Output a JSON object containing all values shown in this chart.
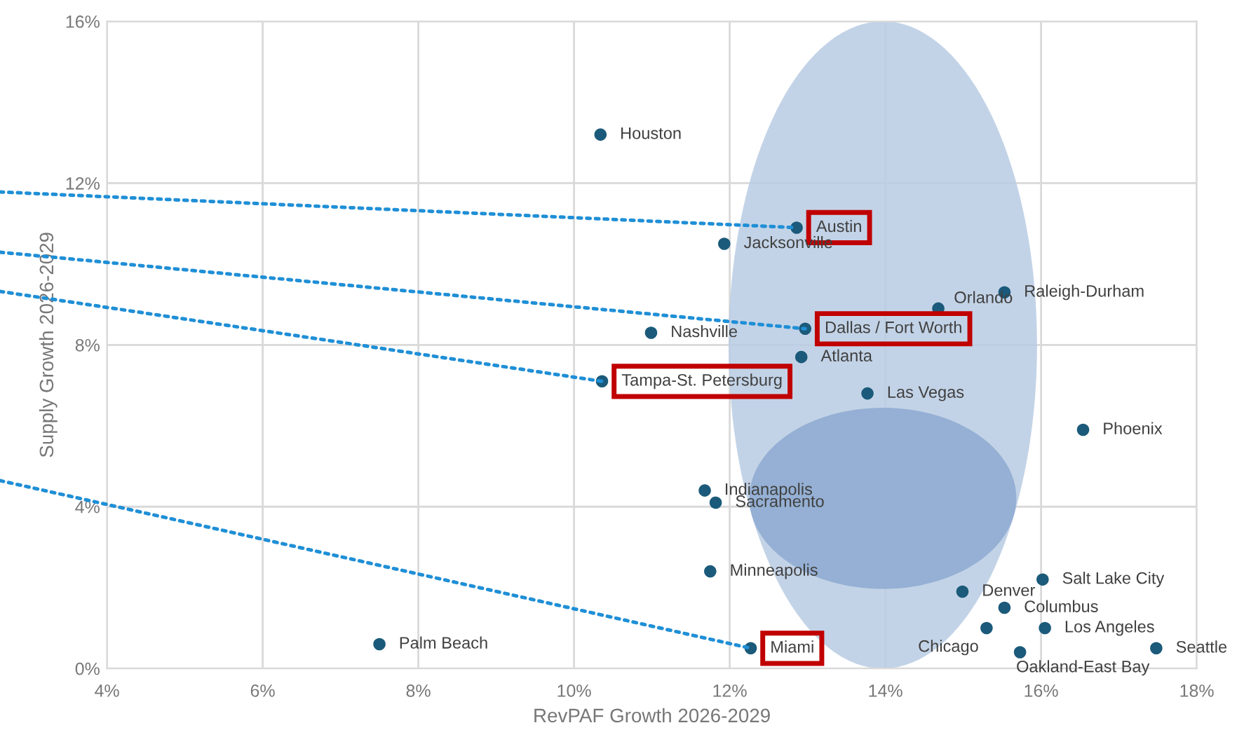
{
  "chart_data": {
    "type": "scatter",
    "xlabel": "RevPAF Growth 2026-2029",
    "ylabel": "Supply Growth 2026-2029",
    "x": [
      10.34,
      12.86,
      11.93,
      15.53,
      14.68,
      10.99,
      12.97,
      12.92,
      10.36,
      13.77,
      16.54,
      11.68,
      11.82,
      11.75,
      16.02,
      14.99,
      15.53,
      16.05,
      15.3,
      7.5,
      12.27,
      15.73,
      17.48
    ],
    "series": [
      {
        "color": "#1b5a7a",
        "values": [
          13.2,
          10.9,
          10.5,
          9.3,
          8.9,
          8.3,
          8.4,
          7.7,
          7.1,
          6.8,
          5.9,
          4.4,
          4.1,
          2.4,
          2.2,
          1.9,
          1.5,
          1.0,
          1.0,
          0.6,
          0.5,
          0.4,
          0.5
        ]
      }
    ],
    "annotations": [
      {
        "text": "Houston",
        "x": 10.34,
        "y": 13.2
      },
      {
        "text": "Austin",
        "x": 12.86,
        "y": 10.9
      },
      {
        "text": "Jacksonville",
        "x": 11.93,
        "y": 10.5
      },
      {
        "text": "Raleigh-Durham",
        "x": 15.53,
        "y": 9.3
      },
      {
        "text": "Orlando",
        "x": 14.68,
        "y": 8.9
      },
      {
        "text": "Nashville",
        "x": 10.99,
        "y": 8.3
      },
      {
        "text": "Dallas / Fort Worth",
        "x": 12.97,
        "y": 8.4
      },
      {
        "text": "Atlanta",
        "x": 12.92,
        "y": 7.7
      },
      {
        "text": "Tampa-St. Petersburg",
        "x": 10.36,
        "y": 7.1
      },
      {
        "text": "Las Vegas",
        "x": 13.77,
        "y": 6.8
      },
      {
        "text": "Phoenix",
        "x": 16.54,
        "y": 5.9
      },
      {
        "text": "Indianapolis",
        "x": 11.68,
        "y": 4.4
      },
      {
        "text": "Sacramento",
        "x": 11.82,
        "y": 4.1
      },
      {
        "text": "Minneapolis",
        "x": 11.75,
        "y": 2.4
      },
      {
        "text": "Salt Lake City",
        "x": 16.02,
        "y": 2.2
      },
      {
        "text": "Denver",
        "x": 14.99,
        "y": 1.9
      },
      {
        "text": "Columbus",
        "x": 15.53,
        "y": 1.5
      },
      {
        "text": "Los Angeles",
        "x": 16.05,
        "y": 1.0
      },
      {
        "text": "Chicago",
        "x": 15.3,
        "y": 1.0
      },
      {
        "text": "Palm Beach",
        "x": 7.5,
        "y": 0.6
      },
      {
        "text": "Miami",
        "x": 12.27,
        "y": 0.5
      },
      {
        "text": "Oakland-East Bay",
        "x": 15.73,
        "y": 0.4
      },
      {
        "text": "Seattle",
        "x": 17.48,
        "y": 0.5
      }
    ],
    "xlim": [
      4,
      18
    ],
    "xticks": [
      {
        "value": 4,
        "label": "4%"
      },
      {
        "value": 6,
        "label": "6%"
      },
      {
        "value": 8,
        "label": "8%"
      },
      {
        "value": 10,
        "label": "10%"
      },
      {
        "value": 12,
        "label": "12%"
      },
      {
        "value": 14,
        "label": "14%"
      },
      {
        "value": 16,
        "label": "16%"
      },
      {
        "value": 18,
        "label": "18%"
      }
    ],
    "ylim": [
      0,
      16
    ],
    "yticks": [
      {
        "value": 0,
        "label": "0%"
      },
      {
        "value": 4,
        "label": "4%"
      },
      {
        "value": 8,
        "label": "8%"
      },
      {
        "value": 12,
        "label": "12%"
      },
      {
        "value": 16,
        "label": "16%"
      }
    ],
    "grid": true,
    "marker": "circle"
  }
}
